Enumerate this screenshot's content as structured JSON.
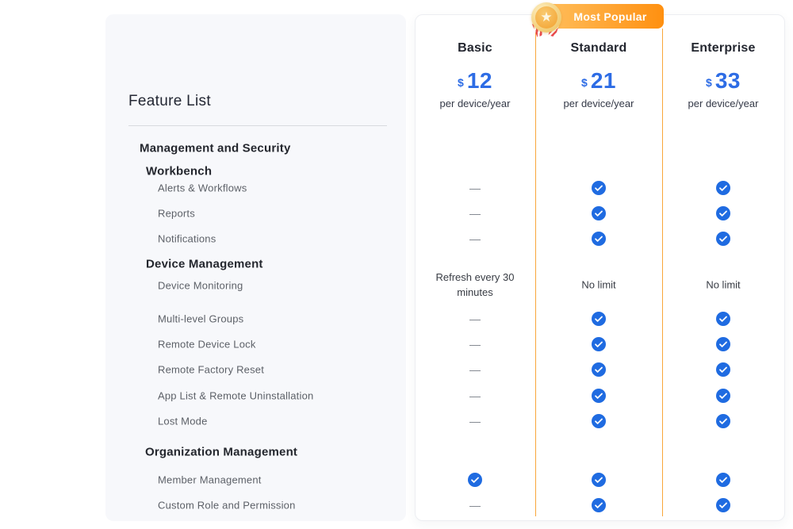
{
  "left_panel": {
    "title": "Feature List"
  },
  "badge": {
    "label": "Most Popular",
    "icon": "medal-star-icon"
  },
  "plans": [
    {
      "name": "Basic",
      "currency": "$",
      "price": "12",
      "period": "per device/year",
      "highlighted": false
    },
    {
      "name": "Standard",
      "currency": "$",
      "price": "21",
      "period": "per device/year",
      "highlighted": true
    },
    {
      "name": "Enterprise",
      "currency": "$",
      "price": "33",
      "period": "per device/year",
      "highlighted": false
    }
  ],
  "colors": {
    "highlight_orange": "#F9A63A",
    "badge_gradient_start": "#FFC263",
    "badge_gradient_end": "#FF9010",
    "price_blue": "#2D6CE5",
    "check_blue": "#1F6BE1",
    "panel_background": "#F7F8FB"
  },
  "rows": [
    {
      "type": "section",
      "label": "Management and Security"
    },
    {
      "type": "subsection",
      "label": "Workbench"
    },
    {
      "type": "feature",
      "label": "Alerts & Workflows",
      "cells": [
        "dash",
        "check",
        "check"
      ]
    },
    {
      "type": "feature",
      "label": "Reports",
      "cells": [
        "dash",
        "check",
        "check"
      ]
    },
    {
      "type": "feature",
      "label": "Notifications",
      "cells": [
        "dash",
        "check",
        "check"
      ]
    },
    {
      "type": "subsection",
      "label": "Device Management"
    },
    {
      "type": "feature",
      "label": "Device Monitoring",
      "cells": [
        "Refresh every 30 minutes",
        "No limit",
        "No limit"
      ]
    },
    {
      "type": "feature",
      "label": "Multi-level Groups",
      "cells": [
        "dash",
        "check",
        "check"
      ]
    },
    {
      "type": "feature",
      "label": "Remote Device Lock",
      "cells": [
        "dash",
        "check",
        "check"
      ]
    },
    {
      "type": "feature",
      "label": "Remote Factory Reset",
      "cells": [
        "dash",
        "check",
        "check"
      ]
    },
    {
      "type": "feature",
      "label": "App List & Remote Uninstallation",
      "cells": [
        "dash",
        "check",
        "check"
      ]
    },
    {
      "type": "feature",
      "label": "Lost Mode",
      "cells": [
        "dash",
        "check",
        "check"
      ]
    },
    {
      "type": "section",
      "label": "Organization Management"
    },
    {
      "type": "feature",
      "label": "Member Management",
      "cells": [
        "check",
        "check",
        "check"
      ]
    },
    {
      "type": "feature",
      "label": "Custom Role and Permission",
      "cells": [
        "dash",
        "check",
        "check"
      ]
    }
  ]
}
